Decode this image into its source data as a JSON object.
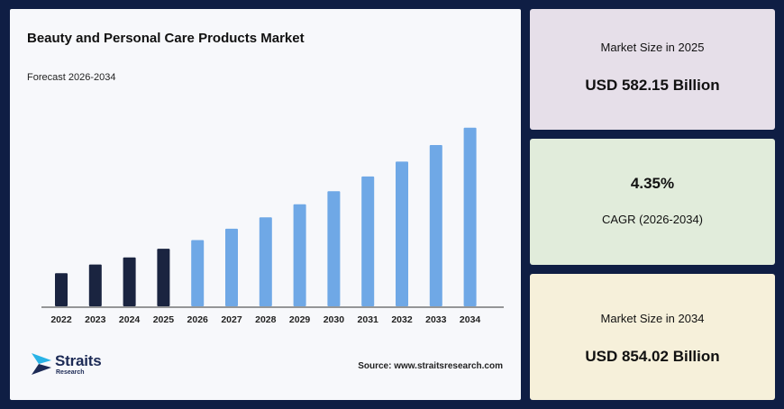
{
  "header": {
    "title": "Beauty and Personal Care Products Market",
    "subtitle": "Forecast 2026-2034"
  },
  "brand": {
    "name": "Straits",
    "sub": "Research"
  },
  "source": "Source: www.straitsresearch.com",
  "colors": {
    "historic": "#1a2440",
    "forecast": "#6fa8e6",
    "background": "#0f1e44"
  },
  "chart_data": {
    "type": "bar",
    "title": "Beauty and Personal Care Products Market",
    "categories": [
      "2022",
      "2023",
      "2024",
      "2025",
      "2026",
      "2027",
      "2028",
      "2029",
      "2030",
      "2031",
      "2032",
      "2033",
      "2034"
    ],
    "values": [
      38,
      48,
      56,
      66,
      76,
      89,
      102,
      117,
      132,
      149,
      166,
      185,
      205
    ],
    "historic_count": 4,
    "ylim": [
      0,
      215
    ],
    "grid": false,
    "legend": "none"
  },
  "stats": {
    "size_2025_label": "Market Size in 2025",
    "size_2025_value": "USD 582.15 Billion",
    "cagr_value": "4.35%",
    "cagr_label": "CAGR (2026-2034)",
    "size_2034_label": "Market Size in 2034",
    "size_2034_value": "USD 854.02 Billion"
  }
}
